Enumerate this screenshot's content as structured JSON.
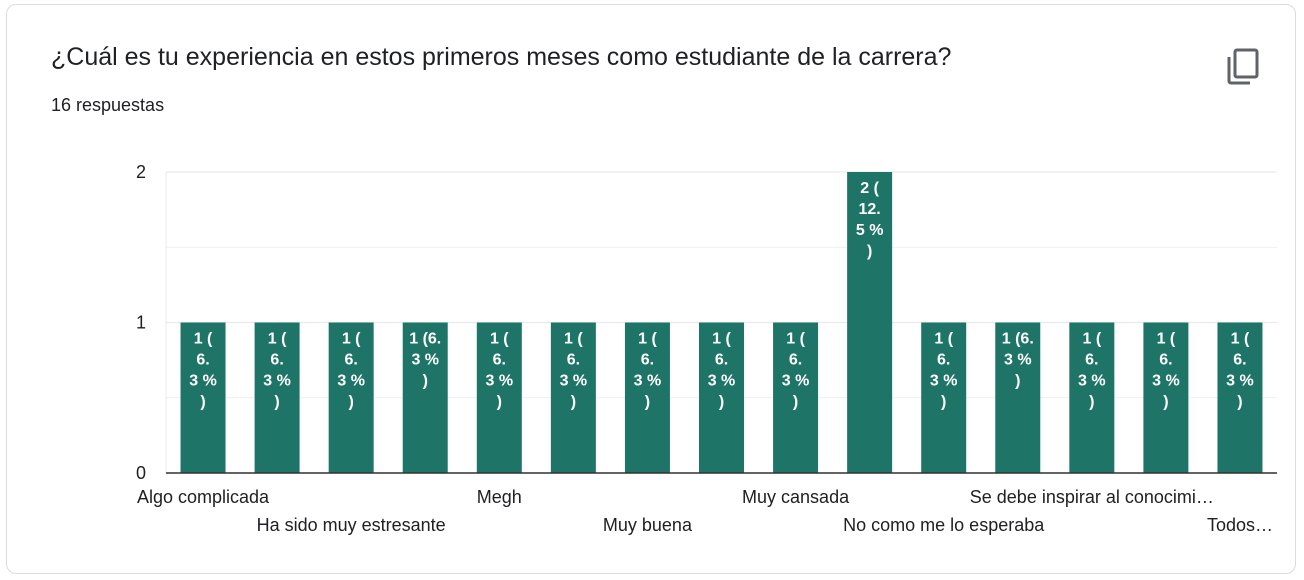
{
  "header": {
    "title": "¿Cuál es tu experiencia en estos primeros meses como estudiante de la carrera?",
    "responses": "16 respuestas",
    "copy_icon": "copy-icon"
  },
  "colors": {
    "bar": "#1e7567",
    "grid": "#e8eaed",
    "axis": "#333333",
    "text": "#202124"
  },
  "chart_data": {
    "type": "bar",
    "ylim": [
      0,
      2
    ],
    "yticks": [
      "0",
      "1",
      "2"
    ],
    "grid": true,
    "values": [
      1,
      1,
      1,
      1,
      1,
      1,
      1,
      1,
      1,
      2,
      1,
      1,
      1,
      1,
      1
    ],
    "bar_labels": [
      [
        "1 (",
        "6.",
        "3 %",
        ")"
      ],
      [
        "1 (",
        "6.",
        "3 %",
        ")"
      ],
      [
        "1 (",
        "6.",
        "3 %",
        ")"
      ],
      [
        "1 (6.",
        "3 %",
        ")"
      ],
      [
        "1 (",
        "6.",
        "3 %",
        ")"
      ],
      [
        "1 (",
        "6.",
        "3 %",
        ")"
      ],
      [
        "1 (",
        "6.",
        "3 %",
        ")"
      ],
      [
        "1 (",
        "6.",
        "3 %",
        ")"
      ],
      [
        "1 (",
        "6.",
        "3 %",
        ")"
      ],
      [
        "2 (",
        "12.",
        "5 %",
        ")"
      ],
      [
        "1 (",
        "6.",
        "3 %",
        ")"
      ],
      [
        "1 (6.",
        "3 %",
        ")"
      ],
      [
        "1 (",
        "6.",
        "3 %",
        ")"
      ],
      [
        "1 (",
        "6.",
        "3 %",
        ")"
      ],
      [
        "1 (",
        "6.",
        "3 %",
        ")"
      ]
    ],
    "category_labels": [
      {
        "index": 0,
        "row": 0,
        "text": "Algo complicada"
      },
      {
        "index": 2,
        "row": 1,
        "text": "Ha sido muy estresante"
      },
      {
        "index": 4,
        "row": 0,
        "text": "Megh"
      },
      {
        "index": 6,
        "row": 1,
        "text": "Muy buena"
      },
      {
        "index": 8,
        "row": 0,
        "text": "Muy cansada"
      },
      {
        "index": 10,
        "row": 1,
        "text": "No como me lo esperaba"
      },
      {
        "index": 12,
        "row": 0,
        "text": "Se debe inspirar al conocimi…"
      },
      {
        "index": 14,
        "row": 1,
        "text": "Todos…"
      }
    ]
  }
}
